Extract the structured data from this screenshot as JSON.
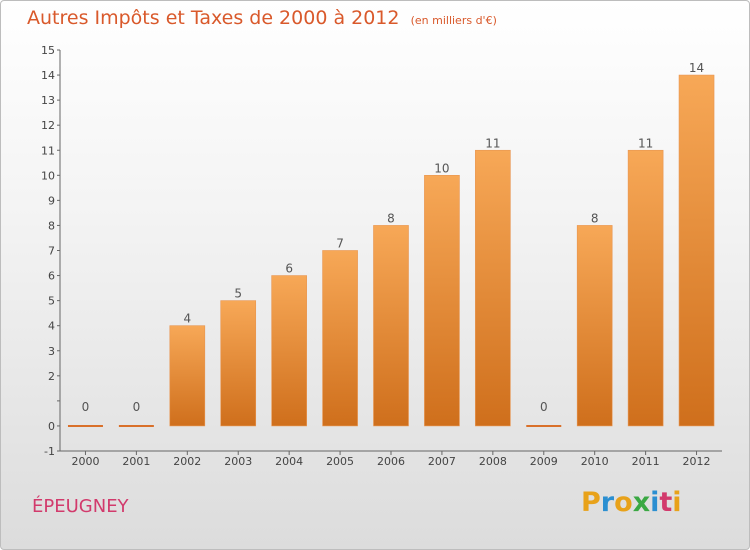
{
  "header": {
    "title": "Autres Impôts et Taxes de 2000 à 2012",
    "unit": "(en milliers d'€)"
  },
  "location": "ÉPEUGNEY",
  "logo": {
    "text": "Proxiti",
    "letters": [
      "P",
      "r",
      "o",
      "x",
      "i",
      "t",
      "i"
    ],
    "colors": [
      "#e8a21a",
      "#2b8fd1",
      "#e8a21a",
      "#3aa843",
      "#2b8fd1",
      "#d23a6c",
      "#e8a21a"
    ]
  },
  "colors": {
    "bar_light": "#f7a857",
    "bar_dark": "#cf6f1c",
    "title": "#d9592b",
    "location": "#d23a6c"
  },
  "chart_data": {
    "type": "bar",
    "title": "Autres Impôts et Taxes de 2000 à 2012",
    "ylabel": "(en milliers d'€)",
    "xlabel": "",
    "categories": [
      "2000",
      "2001",
      "2002",
      "2003",
      "2004",
      "2005",
      "2006",
      "2007",
      "2008",
      "2009",
      "2010",
      "2011",
      "2012"
    ],
    "values": [
      0,
      0,
      4,
      5,
      6,
      7,
      8,
      10,
      11,
      0,
      8,
      11,
      14
    ],
    "ylim": [
      -1,
      15
    ],
    "yticks": [
      -1,
      0,
      1,
      2,
      3,
      4,
      5,
      6,
      7,
      8,
      9,
      10,
      11,
      12,
      13,
      14,
      15
    ],
    "ytick_labels": [
      "-1",
      "0",
      "",
      "2",
      "3",
      "4",
      "5",
      "6",
      "7",
      "8",
      "9",
      "10",
      "11",
      "12",
      "13",
      "14",
      "15"
    ],
    "grid": false,
    "legend": "none"
  }
}
